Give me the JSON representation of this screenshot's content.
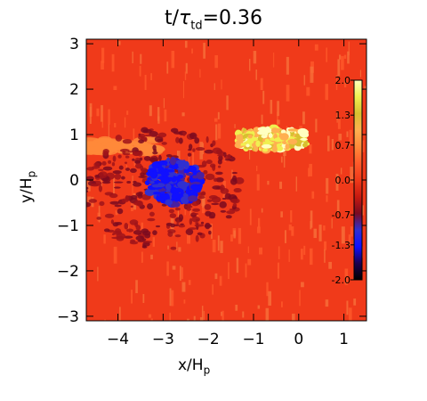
{
  "chart_data": {
    "type": "heatmap",
    "title_main": "t/",
    "title_symbol": "τ",
    "title_sub": "td",
    "title_value": "=0.36",
    "xlabel_main": "x/H",
    "xlabel_sub": "p",
    "ylabel_main": "y/H",
    "ylabel_sub": "p",
    "xlim": [
      -4.7,
      1.5
    ],
    "ylim": [
      -3.1,
      3.1
    ],
    "x_ticks": [
      -4,
      -3,
      -2,
      -1,
      0,
      1
    ],
    "y_ticks": [
      -3,
      -2,
      -1,
      0,
      1,
      2,
      3
    ],
    "x_tick_labels": [
      "−4",
      "−3",
      "−2",
      "−1",
      "0",
      "1"
    ],
    "y_tick_labels": [
      "−3",
      "−2",
      "−1",
      "0",
      "1",
      "2",
      "3"
    ],
    "background_value": 0.35,
    "features": [
      {
        "kind": "negative blob",
        "center": [
          -2.75,
          -0.05
        ],
        "value": -0.9
      },
      {
        "kind": "positive blob",
        "center": [
          -0.6,
          0.9
        ],
        "value": 1.4
      }
    ],
    "colorbar": {
      "range": [
        -2.0,
        2.0
      ],
      "tick_values": [
        2.0,
        1.3,
        0.7,
        0.0,
        -0.7,
        -1.3,
        -2.0
      ],
      "tick_labels": [
        "2.0",
        "1.3",
        "0.7",
        "0.0",
        "-0.7",
        "-1.3",
        "-2.0"
      ],
      "colors": [
        "#000000",
        "#1a0050",
        "#1010ff",
        "#3030d0",
        "#7a0a20",
        "#c81a10",
        "#f03a1a",
        "#ff5a2a",
        "#ff8a3a",
        "#ffb050",
        "#d8c030",
        "#f0f050",
        "#ffffc0"
      ]
    }
  }
}
